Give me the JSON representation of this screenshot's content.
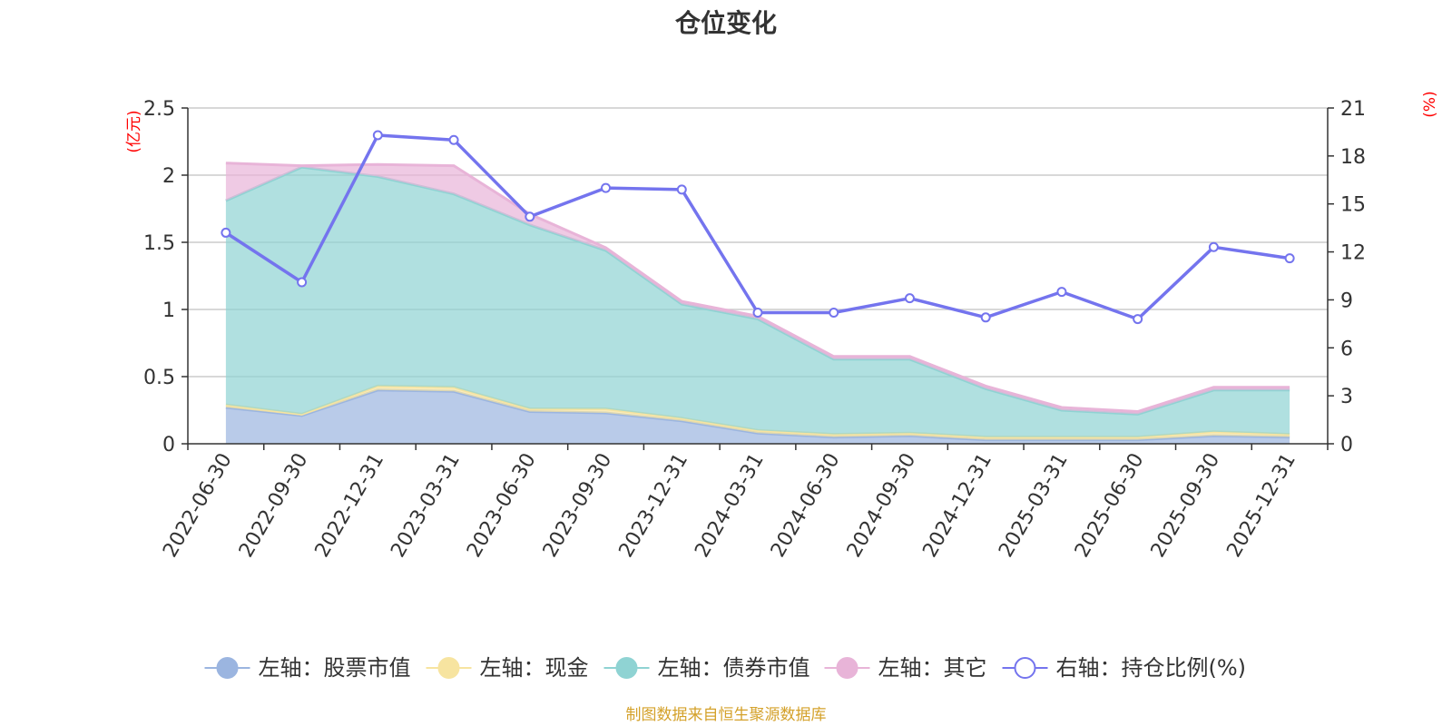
{
  "chart_data": {
    "type": "area",
    "title": "仓位变化",
    "categories": [
      "2022-06-30",
      "2022-09-30",
      "2022-12-31",
      "2023-03-31",
      "2023-06-30",
      "2023-09-30",
      "2023-12-31",
      "2024-03-31",
      "2024-06-30",
      "2024-09-30",
      "2024-12-31",
      "2025-03-31",
      "2025-06-30",
      "2025-09-30",
      "2025-12-31"
    ],
    "left_axis": {
      "unit": "(亿元)",
      "ylim": [
        0,
        2.5
      ],
      "ticks": [
        "0",
        "0.5",
        "1",
        "1.5",
        "2",
        "2.5"
      ]
    },
    "right_axis": {
      "unit": "(%)",
      "ylim": [
        0,
        21
      ],
      "ticks": [
        "0",
        "3",
        "6",
        "9",
        "12",
        "15",
        "18",
        "21"
      ]
    },
    "stacked_series": [
      {
        "name": "左轴：股票市值",
        "color": "#9bb5e0",
        "values": [
          0.27,
          0.21,
          0.4,
          0.39,
          0.24,
          0.23,
          0.17,
          0.08,
          0.05,
          0.06,
          0.03,
          0.03,
          0.03,
          0.06,
          0.05
        ]
      },
      {
        "name": "左轴：现金",
        "color": "#f7e4a0",
        "values": [
          0.02,
          0.01,
          0.03,
          0.03,
          0.02,
          0.03,
          0.02,
          0.02,
          0.02,
          0.02,
          0.02,
          0.02,
          0.02,
          0.03,
          0.02
        ]
      },
      {
        "name": "左轴：债券市值",
        "color": "#8fd3d3",
        "values": [
          1.52,
          1.84,
          1.56,
          1.44,
          1.37,
          1.18,
          0.85,
          0.83,
          0.56,
          0.55,
          0.36,
          0.2,
          0.17,
          0.31,
          0.33
        ]
      },
      {
        "name": "左轴：其它",
        "color": "#e8b4d8",
        "values": [
          0.28,
          0.01,
          0.09,
          0.21,
          0.08,
          0.02,
          0.02,
          0.02,
          0.02,
          0.02,
          0.02,
          0.02,
          0.02,
          0.02,
          0.02
        ]
      }
    ],
    "line_series": {
      "name": "右轴：持仓比例(%)",
      "color": "#7474ee",
      "values": [
        13.2,
        10.1,
        19.3,
        19.0,
        14.2,
        16.0,
        15.9,
        8.2,
        8.2,
        9.1,
        7.9,
        9.5,
        7.8,
        12.3,
        11.6
      ]
    },
    "grid": true,
    "legend_position": "bottom"
  },
  "footer": "制图数据来自恒生聚源数据库"
}
